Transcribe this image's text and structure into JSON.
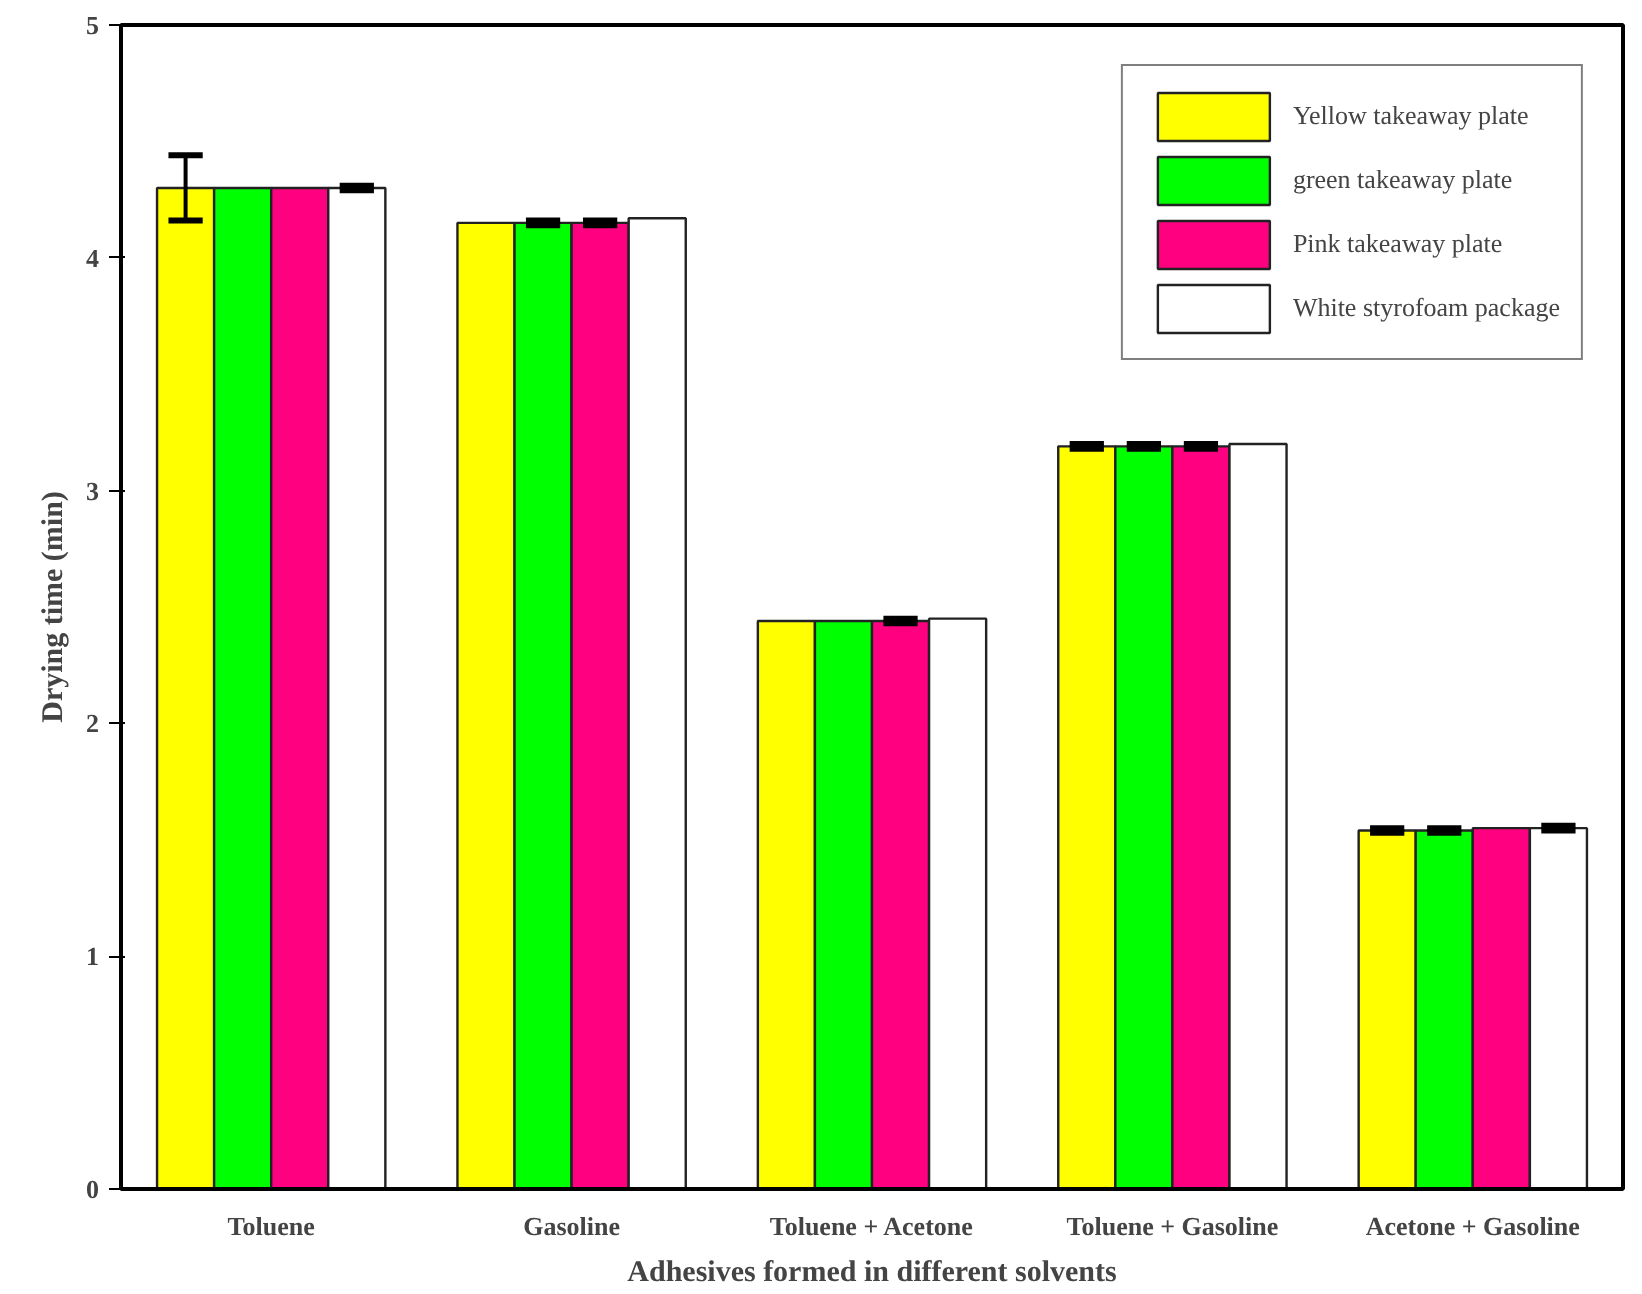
{
  "chart_data": {
    "type": "bar",
    "xlabel": "Adhesives formed in different solvents",
    "ylabel": "Drying time (min)",
    "categories": [
      "Toluene",
      "Gasoline",
      "Toluene + Acetone",
      "Toluene + Gasoline",
      "Acetone + Gasoline"
    ],
    "series": [
      {
        "name": "Yellow takeaway plate",
        "color": "#ffff00",
        "values": [
          4.3,
          4.15,
          2.44,
          3.19,
          1.54
        ],
        "errors": [
          0.14,
          null,
          null,
          0.01,
          0.01
        ]
      },
      {
        "name": "green takeaway plate",
        "color": "#00ff00",
        "values": [
          4.3,
          4.15,
          2.44,
          3.19,
          1.54
        ],
        "errors": [
          null,
          0.01,
          null,
          0.01,
          0.01
        ]
      },
      {
        "name": "Pink takeaway plate",
        "color": "#ff0080",
        "values": [
          4.3,
          4.15,
          2.44,
          3.19,
          1.55
        ],
        "errors": [
          null,
          0.01,
          0.01,
          0.01,
          null
        ]
      },
      {
        "name": "White styrofoam package",
        "color": "#ffffff",
        "values": [
          4.3,
          4.17,
          2.45,
          3.2,
          1.55
        ],
        "errors": [
          0.01,
          null,
          null,
          null,
          0.01
        ]
      }
    ],
    "ylim": [
      0,
      5
    ],
    "yticks": [
      0,
      1,
      2,
      3,
      4,
      5
    ],
    "grid": false,
    "legend": "top right"
  }
}
